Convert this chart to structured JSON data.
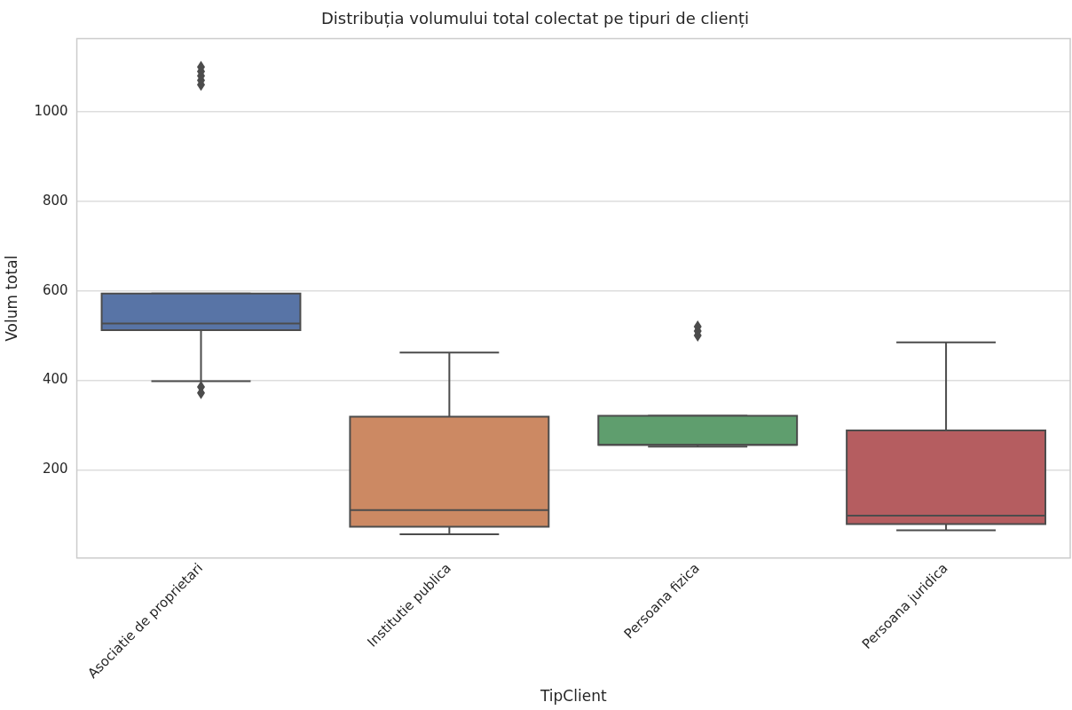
{
  "chart_data": {
    "type": "box",
    "title": "Distribuția volumului total colectat pe tipuri de clienți",
    "xlabel": "TipClient",
    "ylabel": "Volum total",
    "categories": [
      "Asociatie de proprietari",
      "Institutie publica",
      "Persoana fizica",
      "Persoana juridica"
    ],
    "colors": [
      "#5874a6",
      "#cc8963",
      "#5f9e6e",
      "#b55d60"
    ],
    "boxes": [
      {
        "low": 398,
        "q1": 512,
        "median": 527,
        "q3": 594,
        "high": 594,
        "outliers": [
          1060,
          1070,
          1080,
          1090,
          1100,
          385,
          372
        ]
      },
      {
        "low": 56,
        "q1": 73,
        "median": 110,
        "q3": 319,
        "high": 462
      },
      {
        "low": 252,
        "q1": 256,
        "median": 256,
        "q3": 321,
        "high": 321,
        "outliers": [
          500,
          510,
          520
        ]
      },
      {
        "low": 65,
        "q1": 79,
        "median": 98,
        "q3": 288,
        "high": 485
      }
    ],
    "ylim": [
      3,
      1163
    ],
    "yticks": [
      200,
      400,
      600,
      800,
      1000
    ],
    "grid": "y",
    "marker": "diamond"
  }
}
